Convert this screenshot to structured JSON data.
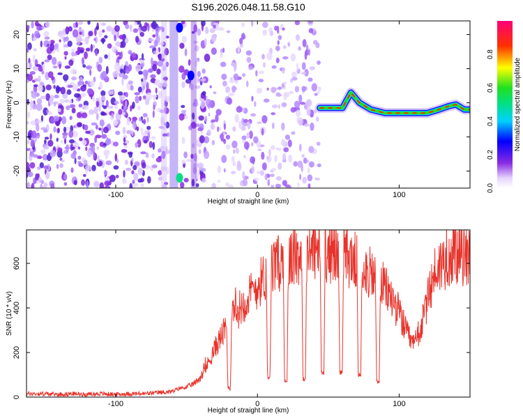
{
  "title": "S196.2026.048.11.58.G10",
  "chart_data": [
    {
      "type": "heatmap",
      "title": "S196.2026.048.11.58.G10",
      "xlabel": "Height of straight line (km)",
      "ylabel": "Frequency (Hz)",
      "xlim": [
        -163,
        150
      ],
      "ylim": [
        -25,
        24
      ],
      "xticks": [
        -100,
        0,
        100
      ],
      "yticks": [
        -20,
        -10,
        0,
        10,
        20
      ],
      "colorbar": {
        "label": "Normalized spectral amplitude",
        "range": [
          0,
          1
        ],
        "ticks": [
          0.0,
          0.2,
          0.4,
          0.6,
          0.8
        ]
      },
      "ridge": {
        "description": "strong coherent tone",
        "points": [
          [
            44,
            -1.5
          ],
          [
            55,
            -1.5
          ],
          [
            60,
            -1.5
          ],
          [
            66,
            3
          ],
          [
            72,
            0
          ],
          [
            80,
            -2
          ],
          [
            90,
            -3
          ],
          [
            100,
            -3
          ],
          [
            110,
            -3
          ],
          [
            120,
            -3
          ],
          [
            128,
            -2
          ],
          [
            135,
            -1
          ],
          [
            140,
            -0.5
          ],
          [
            146,
            -2
          ],
          [
            150,
            -2
          ]
        ]
      }
    },
    {
      "type": "line",
      "xlabel": "Height of straight line (km)",
      "ylabel": "SNR (10 * v/v)",
      "xlim": [
        -163,
        150
      ],
      "ylim": [
        0,
        750
      ],
      "xticks": [
        -100,
        0,
        100
      ],
      "yticks": [
        0,
        200,
        400,
        600
      ],
      "color": "#e8332b",
      "series": [
        {
          "name": "SNR",
          "x": [
            -163,
            -150,
            -140,
            -130,
            -120,
            -110,
            -100,
            -90,
            -80,
            -70,
            -60,
            -55,
            -50,
            -45,
            -40,
            -35,
            -30,
            -25,
            -20,
            -15,
            -10,
            -5,
            0,
            5,
            10,
            15,
            20,
            25,
            30,
            35,
            40,
            45,
            50,
            55,
            60,
            65,
            70,
            75,
            80,
            85,
            90,
            95,
            100,
            105,
            110,
            115,
            120,
            125,
            130,
            135,
            140,
            145,
            150
          ],
          "values": [
            15,
            15,
            12,
            15,
            12,
            15,
            12,
            15,
            15,
            20,
            25,
            40,
            45,
            60,
            90,
            150,
            220,
            280,
            330,
            380,
            420,
            460,
            500,
            540,
            570,
            600,
            610,
            620,
            640,
            650,
            660,
            655,
            650,
            640,
            630,
            620,
            610,
            580,
            550,
            520,
            490,
            440,
            380,
            290,
            230,
            300,
            430,
            560,
            600,
            630,
            640,
            630,
            640
          ]
        }
      ],
      "dropouts": [
        {
          "x": -20,
          "low": 30
        },
        {
          "x": 8,
          "low": 80
        },
        {
          "x": 20,
          "low": 60
        },
        {
          "x": 33,
          "low": 70
        },
        {
          "x": 46,
          "low": 100
        },
        {
          "x": 59,
          "low": 100
        },
        {
          "x": 72,
          "low": 90
        },
        {
          "x": 85,
          "low": 60
        }
      ]
    }
  ]
}
